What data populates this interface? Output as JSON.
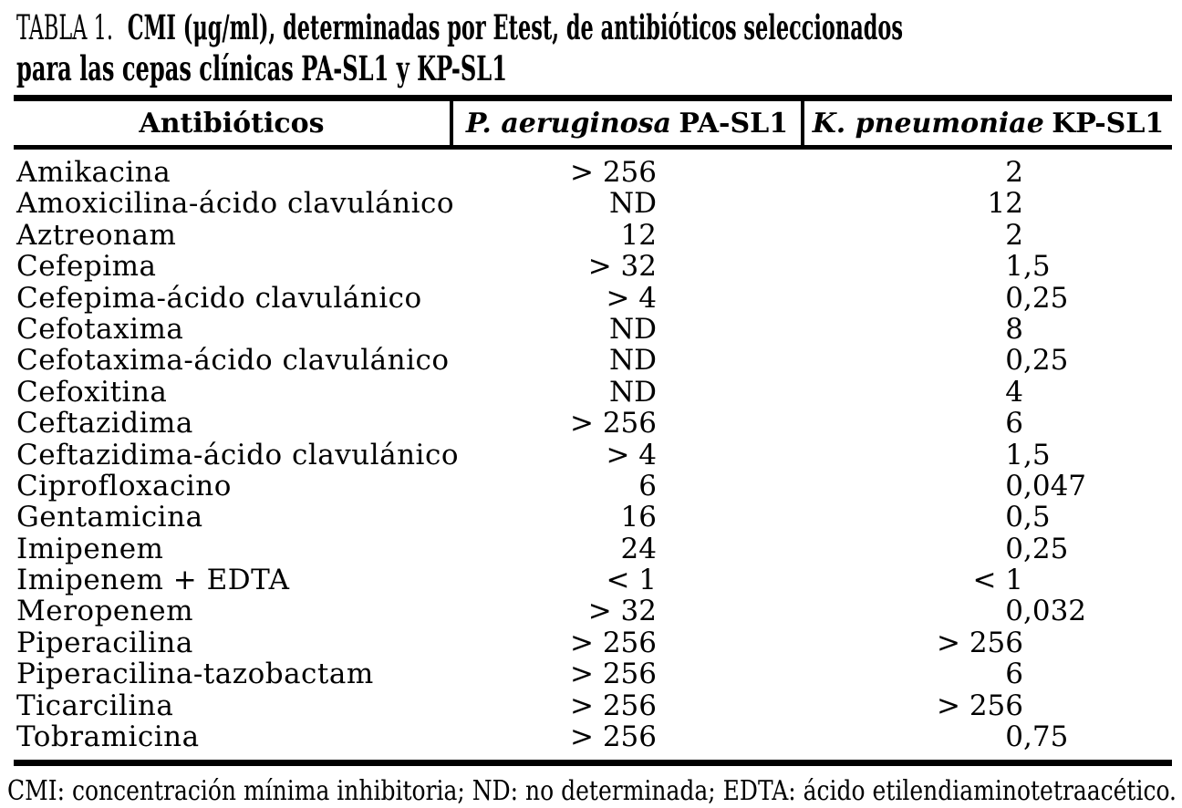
{
  "caption": {
    "label": "TABLA 1.",
    "line1": "CMI (μg/ml), determinadas por Etest, de antibióticos seleccionados",
    "line2": "para las cepas clínicas PA-SL1 y KP-SL1"
  },
  "table": {
    "header": {
      "antibiotics": "Antibióticos",
      "col_pa": {
        "species": "P. aeruginosa",
        "strain": "PA-SL1"
      },
      "col_kp": {
        "species": "K. pneumoniae",
        "strain": "KP-SL1"
      }
    },
    "rows": [
      {
        "antibiotic": "Amikacina",
        "pa": "> 256",
        "kp": "2"
      },
      {
        "antibiotic": "Amoxicilina-ácido clavulánico",
        "pa": "ND",
        "kp": "12"
      },
      {
        "antibiotic": "Aztreonam",
        "pa": "12",
        "kp": "2"
      },
      {
        "antibiotic": "Cefepima",
        "pa": "> 32",
        "kp": "1,5"
      },
      {
        "antibiotic": "Cefepima-ácido clavulánico",
        "pa": "> 4",
        "kp": "0,25"
      },
      {
        "antibiotic": "Cefotaxima",
        "pa": "ND",
        "kp": "8"
      },
      {
        "antibiotic": "Cefotaxima-ácido clavulánico",
        "pa": "ND",
        "kp": "0,25"
      },
      {
        "antibiotic": "Cefoxitina",
        "pa": "ND",
        "kp": "4"
      },
      {
        "antibiotic": "Ceftazidima",
        "pa": "> 256",
        "kp": "6"
      },
      {
        "antibiotic": "Ceftazidima-ácido clavulánico",
        "pa": "> 4",
        "kp": "1,5"
      },
      {
        "antibiotic": "Ciprofloxacino",
        "pa": "6",
        "kp": "0,047"
      },
      {
        "antibiotic": "Gentamicina",
        "pa": "16",
        "kp": "0,5"
      },
      {
        "antibiotic": "Imipenem",
        "pa": "24",
        "kp": "0,25"
      },
      {
        "antibiotic": "Imipenem + EDTA",
        "pa": "< 1",
        "kp": "< 1"
      },
      {
        "antibiotic": "Meropenem",
        "pa": "> 32",
        "kp": "0,032"
      },
      {
        "antibiotic": "Piperacilina",
        "pa": "> 256",
        "kp": "> 256"
      },
      {
        "antibiotic": "Piperacilina-tazobactam",
        "pa": "> 256",
        "kp": "6"
      },
      {
        "antibiotic": "Ticarcilina",
        "pa": "> 256",
        "kp": "> 256"
      },
      {
        "antibiotic": "Tobramicina",
        "pa": "> 256",
        "kp": "0,75"
      }
    ]
  },
  "footnote": "CMI: concentración mínima inhibitoria; ND: no determinada; EDTA: ácido etilendiaminotetraacético.",
  "colors": {
    "text": "#000000",
    "background": "#ffffff",
    "rule": "#000000"
  }
}
